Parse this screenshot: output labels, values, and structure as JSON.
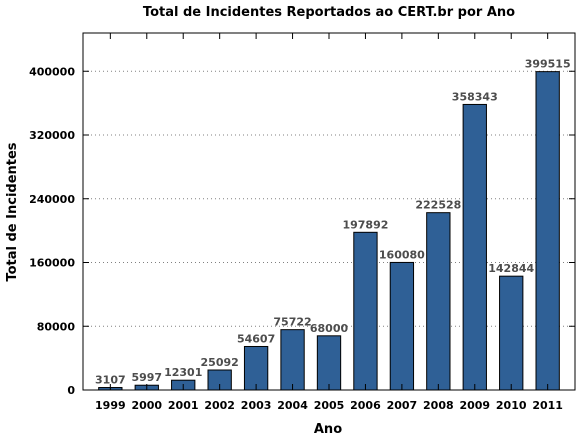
{
  "chart_data": {
    "type": "bar",
    "title": "Total de Incidentes Reportados ao CERT.br por Ano",
    "xlabel": "Ano",
    "ylabel": "Total de Incidentes",
    "categories": [
      "1999",
      "2000",
      "2001",
      "2002",
      "2003",
      "2004",
      "2005",
      "2006",
      "2007",
      "2008",
      "2009",
      "2010",
      "2011"
    ],
    "values": [
      3107,
      5997,
      12301,
      25092,
      54607,
      75722,
      68000,
      197892,
      160080,
      222528,
      358343,
      142844,
      399515
    ],
    "data_labels": [
      "3107",
      "5997",
      "12301",
      "25092",
      "54607",
      "75722",
      "68000",
      "197892",
      "160080",
      "222528",
      "358343",
      "142844",
      "399515"
    ],
    "ylim": [
      0,
      448000
    ],
    "yticks": [
      0,
      80000,
      160000,
      240000,
      320000,
      400000
    ],
    "ytick_labels": [
      "0",
      "80000",
      "160000",
      "240000",
      "320000",
      "400000"
    ],
    "grid": "horizontal dotted",
    "colors": {
      "bar": "#2f6096",
      "data_label": "#4d4d4d"
    }
  }
}
